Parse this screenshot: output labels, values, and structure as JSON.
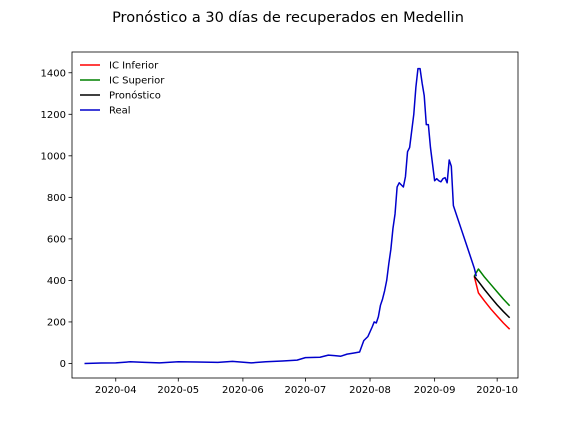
{
  "chart_data": {
    "type": "line",
    "title": "Pronóstico a 30 días de recuperados en Medellin",
    "xlabel": "",
    "ylabel": "",
    "x_axis": {
      "type": "date",
      "range": [
        "2020-03-11",
        "2020-10-11"
      ],
      "ticks": [
        "2020-04-01",
        "2020-05-01",
        "2020-06-01",
        "2020-07-01",
        "2020-08-01",
        "2020-09-01",
        "2020-10-01"
      ],
      "tick_labels": [
        "2020-04",
        "2020-05",
        "2020-06",
        "2020-07",
        "2020-08",
        "2020-09",
        "2020-10"
      ]
    },
    "y_axis": {
      "range": [
        -70,
        1500
      ],
      "ticks": [
        0,
        200,
        400,
        600,
        800,
        1000,
        1200,
        1400
      ],
      "tick_labels": [
        "0",
        "200",
        "400",
        "600",
        "800",
        "1000",
        "1200",
        "1400"
      ]
    },
    "legend": {
      "placement": "top-left"
    },
    "series": [
      {
        "name": "IC Inferior",
        "color": "#ff0000",
        "points": [
          [
            "2020-09-20",
            420
          ],
          [
            "2020-09-22",
            340
          ],
          [
            "2020-09-25",
            300
          ],
          [
            "2020-09-28",
            262
          ],
          [
            "2020-10-01",
            228
          ],
          [
            "2020-10-04",
            195
          ],
          [
            "2020-10-07",
            165
          ]
        ]
      },
      {
        "name": "IC Superior",
        "color": "#008000",
        "points": [
          [
            "2020-09-20",
            420
          ],
          [
            "2020-09-22",
            455
          ],
          [
            "2020-09-25",
            415
          ],
          [
            "2020-09-28",
            380
          ],
          [
            "2020-10-01",
            345
          ],
          [
            "2020-10-04",
            310
          ],
          [
            "2020-10-07",
            278
          ]
        ]
      },
      {
        "name": "Pronóstico",
        "color": "#000000",
        "points": [
          [
            "2020-09-20",
            420
          ],
          [
            "2020-09-22",
            395
          ],
          [
            "2020-09-25",
            355
          ],
          [
            "2020-09-28",
            318
          ],
          [
            "2020-10-01",
            282
          ],
          [
            "2020-10-04",
            250
          ],
          [
            "2020-10-07",
            220
          ]
        ]
      },
      {
        "name": "Real",
        "color": "#0000cc",
        "points": [
          [
            "2020-03-17",
            0
          ],
          [
            "2020-03-25",
            2
          ],
          [
            "2020-04-01",
            3
          ],
          [
            "2020-04-08",
            8
          ],
          [
            "2020-04-15",
            5
          ],
          [
            "2020-04-22",
            3
          ],
          [
            "2020-05-01",
            8
          ],
          [
            "2020-05-10",
            7
          ],
          [
            "2020-05-20",
            5
          ],
          [
            "2020-05-27",
            10
          ],
          [
            "2020-06-05",
            3
          ],
          [
            "2020-06-12",
            8
          ],
          [
            "2020-06-20",
            12
          ],
          [
            "2020-06-27",
            16
          ],
          [
            "2020-07-01",
            28
          ],
          [
            "2020-07-08",
            30
          ],
          [
            "2020-07-12",
            40
          ],
          [
            "2020-07-15",
            38
          ],
          [
            "2020-07-18",
            35
          ],
          [
            "2020-07-21",
            45
          ],
          [
            "2020-07-24",
            50
          ],
          [
            "2020-07-27",
            55
          ],
          [
            "2020-07-29",
            110
          ],
          [
            "2020-07-31",
            130
          ],
          [
            "2020-08-02",
            175
          ],
          [
            "2020-08-03",
            200
          ],
          [
            "2020-08-04",
            195
          ],
          [
            "2020-08-05",
            225
          ],
          [
            "2020-08-06",
            280
          ],
          [
            "2020-08-07",
            310
          ],
          [
            "2020-08-08",
            350
          ],
          [
            "2020-08-09",
            400
          ],
          [
            "2020-08-10",
            480
          ],
          [
            "2020-08-11",
            550
          ],
          [
            "2020-08-12",
            650
          ],
          [
            "2020-08-13",
            720
          ],
          [
            "2020-08-14",
            850
          ],
          [
            "2020-08-15",
            870
          ],
          [
            "2020-08-16",
            860
          ],
          [
            "2020-08-17",
            850
          ],
          [
            "2020-08-18",
            900
          ],
          [
            "2020-08-19",
            1020
          ],
          [
            "2020-08-20",
            1040
          ],
          [
            "2020-08-21",
            1120
          ],
          [
            "2020-08-22",
            1200
          ],
          [
            "2020-08-23",
            1330
          ],
          [
            "2020-08-24",
            1420
          ],
          [
            "2020-08-25",
            1420
          ],
          [
            "2020-08-26",
            1350
          ],
          [
            "2020-08-27",
            1290
          ],
          [
            "2020-08-28",
            1150
          ],
          [
            "2020-08-29",
            1150
          ],
          [
            "2020-08-30",
            1040
          ],
          [
            "2020-08-31",
            960
          ],
          [
            "2020-09-01",
            880
          ],
          [
            "2020-09-02",
            890
          ],
          [
            "2020-09-03",
            880
          ],
          [
            "2020-09-04",
            875
          ],
          [
            "2020-09-05",
            890
          ],
          [
            "2020-09-06",
            895
          ],
          [
            "2020-09-07",
            870
          ],
          [
            "2020-09-08",
            980
          ],
          [
            "2020-09-09",
            950
          ],
          [
            "2020-09-10",
            760
          ],
          [
            "2020-09-12",
            700
          ],
          [
            "2020-09-14",
            640
          ],
          [
            "2020-09-16",
            580
          ],
          [
            "2020-09-18",
            520
          ],
          [
            "2020-09-20",
            460
          ],
          [
            "2020-09-21",
            420
          ]
        ]
      }
    ]
  }
}
